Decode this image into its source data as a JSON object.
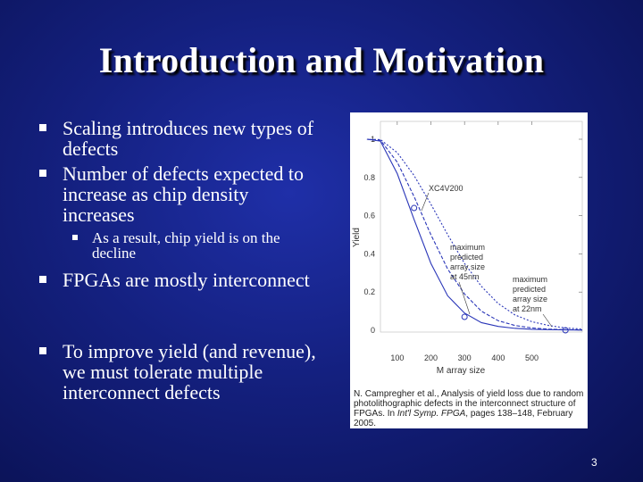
{
  "slide": {
    "title": "Introduction and Motivation",
    "page_number": "3"
  },
  "bullets": [
    "Scaling introduces new types of defects",
    "Number of defects expected to increase as chip density increases",
    "FPGAs are mostly interconnect",
    "To improve yield (and revenue), we must tolerate multiple interconnect defects"
  ],
  "sub_bullets": [
    "As a result, chip yield is on the decline"
  ],
  "figure": {
    "caption_prefix": "N. Campregher et al., Analysis of yield loss due to random photolithographic defects in the interconnect structure of FPGAs. In ",
    "caption_italic": "Int'l Symp. FPGA",
    "caption_suffix": ", pages 138–148, February 2005.",
    "annotations": {
      "xc4v200": "XC4V200",
      "max45_l1": "maximum",
      "max45_l2": "predicted",
      "max45_l3": "array size",
      "max45_l4": "at 45nm",
      "max22_l1": "maximum",
      "max22_l2": "predicted",
      "max22_l3": "array size",
      "max22_l4": "at 22nm"
    }
  },
  "chart_data": {
    "type": "line",
    "xlabel": "M array size",
    "ylabel": "Yield",
    "xlim": [
      50,
      650
    ],
    "ylim": [
      0,
      1
    ],
    "x_ticks": [
      "100",
      "200",
      "300",
      "400",
      "500"
    ],
    "y_ticks": [
      "1",
      "0.8",
      "0.6",
      "0.4",
      "0.2",
      "0"
    ],
    "series": [
      {
        "x": [
          1,
          50,
          100,
          150,
          200,
          250,
          300,
          350,
          400,
          450,
          500,
          550,
          600,
          650
        ],
        "values": [
          1.0,
          0.99,
          0.82,
          0.58,
          0.35,
          0.18,
          0.09,
          0.04,
          0.02,
          0.01,
          0.005,
          0.003,
          0.002,
          0.001
        ]
      },
      {
        "x": [
          1,
          50,
          100,
          150,
          200,
          250,
          300,
          350,
          400,
          450,
          500,
          550,
          600,
          650
        ],
        "values": [
          1.0,
          0.995,
          0.88,
          0.7,
          0.5,
          0.32,
          0.19,
          0.1,
          0.05,
          0.025,
          0.012,
          0.006,
          0.003,
          0.002
        ]
      },
      {
        "x": [
          1,
          50,
          100,
          150,
          200,
          250,
          300,
          350,
          400,
          450,
          500,
          550,
          600,
          650
        ],
        "values": [
          1.0,
          0.998,
          0.93,
          0.81,
          0.66,
          0.5,
          0.35,
          0.23,
          0.14,
          0.08,
          0.045,
          0.025,
          0.012,
          0.006
        ]
      }
    ],
    "markers": [
      {
        "label": "XC4V200",
        "x": 150,
        "y": 0.64
      },
      {
        "label": "at 45nm",
        "x": 300,
        "y": 0.07
      },
      {
        "label": "at 22nm",
        "x": 600,
        "y": 0.0
      }
    ]
  }
}
